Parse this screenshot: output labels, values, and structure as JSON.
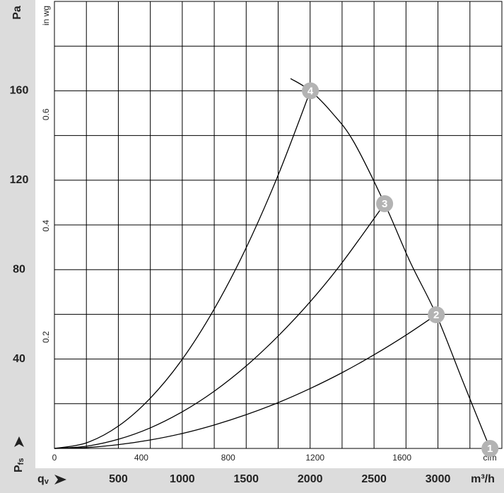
{
  "chart_data": {
    "type": "line",
    "y_label": "Pa",
    "y2_label": "in wg",
    "x2_label": "cfm",
    "x_label": "m³/h",
    "x_symbol": "q",
    "x_symbol_sub": "v",
    "y_symbol": "P",
    "y_symbol_sub": "fs",
    "xlim": [
      0,
      3500
    ],
    "xticks": [
      500,
      1000,
      1500,
      2000,
      2500,
      3000
    ],
    "ylim": [
      0,
      200
    ],
    "yticks": [
      40,
      80,
      120,
      160
    ],
    "x2lim": [
      0,
      2060
    ],
    "x2ticks": [
      0,
      400,
      800,
      1200,
      1600
    ],
    "y2lim": [
      0,
      0.803
    ],
    "y2ticks": [
      0.2,
      0.4,
      0.6
    ],
    "xgrid": [
      250,
      500,
      750,
      1000,
      1250,
      1500,
      1750,
      2000,
      2250,
      2500,
      2750,
      3000,
      3250
    ],
    "ygrid": [
      20,
      40,
      60,
      80,
      100,
      120,
      140,
      160,
      180
    ],
    "series": [
      {
        "color": "#000000",
        "x": [
          1847,
          2002,
          2174,
          2340,
          2583,
          2782,
          2987,
          3197,
          3407
        ],
        "values": [
          165.5,
          160,
          150,
          137.3,
          109.5,
          83.5,
          59.8,
          29.7,
          0
        ]
      },
      {
        "color": "#000000",
        "x": [
          0,
          250,
          500,
          750,
          1000,
          1250,
          1500,
          1750,
          2002
        ],
        "values": [
          0,
          2.5,
          10,
          22.5,
          39.9,
          62.4,
          89.8,
          122.3,
          160
        ]
      },
      {
        "color": "#000000",
        "x": [
          0,
          250,
          500,
          750,
          1000,
          1250,
          1500,
          1750,
          2000,
          2250,
          2583
        ],
        "values": [
          0,
          1.0,
          4.1,
          9.2,
          16.4,
          25.6,
          36.9,
          50.3,
          65.6,
          83.1,
          109.5
        ]
      },
      {
        "color": "#000000",
        "x": [
          0,
          250,
          500,
          750,
          1000,
          1250,
          1500,
          1750,
          2000,
          2250,
          2500,
          2750,
          2987
        ],
        "values": [
          0,
          0.4,
          1.7,
          3.8,
          6.7,
          10.5,
          15.1,
          20.5,
          26.8,
          33.9,
          41.9,
          50.7,
          59.8
        ]
      }
    ],
    "point_color": "#b3b3b3",
    "points": [
      {
        "label": "1",
        "x": 3407,
        "y": 0
      },
      {
        "label": "2",
        "x": 2987,
        "y": 59.8
      },
      {
        "label": "3",
        "x": 2583,
        "y": 109.5
      },
      {
        "label": "4",
        "x": 2002,
        "y": 160
      }
    ]
  }
}
